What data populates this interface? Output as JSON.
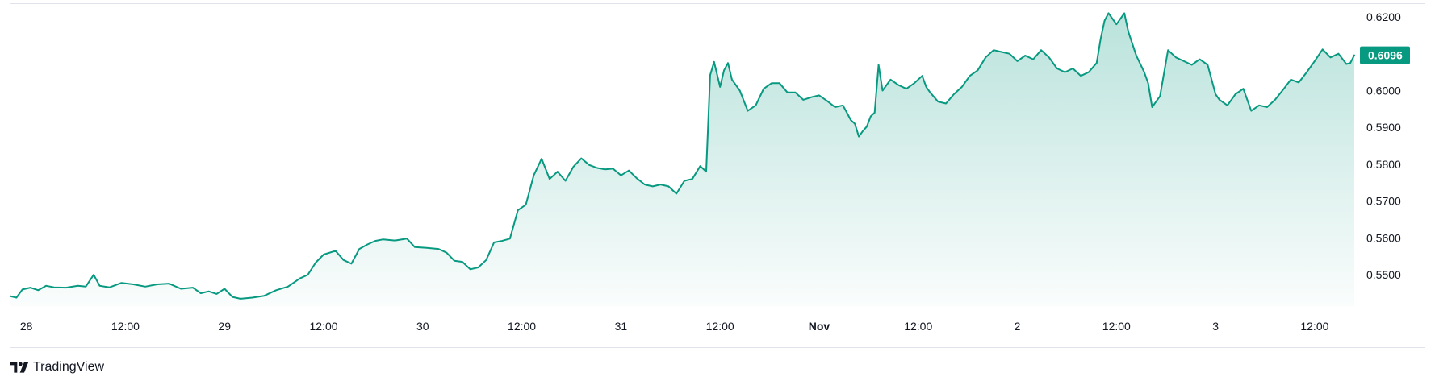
{
  "colors": {
    "line": "#089981",
    "fill_top": "#089981",
    "badge_bg": "#089981",
    "badge_text": "#ffffff"
  },
  "brand": {
    "name": "TradingView",
    "icon": "tradingview-logo-icon"
  },
  "chart_data": {
    "type": "area",
    "title": "",
    "xlabel": "",
    "ylabel": "",
    "grid": false,
    "ylim": [
      0.5415,
      0.6235
    ],
    "y_ticks": [
      "0.5500",
      "0.5600",
      "0.5700",
      "0.5800",
      "0.5900",
      "0.6000",
      "0.6200"
    ],
    "x_ticks": [
      {
        "label": "28",
        "t": 1.0,
        "bold": false
      },
      {
        "label": "12:00",
        "t": 1.5,
        "bold": false
      },
      {
        "label": "29",
        "t": 2.0,
        "bold": false
      },
      {
        "label": "12:00",
        "t": 2.5,
        "bold": false
      },
      {
        "label": "30",
        "t": 3.0,
        "bold": false
      },
      {
        "label": "12:00",
        "t": 3.5,
        "bold": false
      },
      {
        "label": "31",
        "t": 4.0,
        "bold": false
      },
      {
        "label": "12:00",
        "t": 4.5,
        "bold": false
      },
      {
        "label": "Nov",
        "t": 5.0,
        "bold": true
      },
      {
        "label": "12:00",
        "t": 5.5,
        "bold": false
      },
      {
        "label": "2",
        "t": 6.0,
        "bold": false
      },
      {
        "label": "12:00",
        "t": 6.5,
        "bold": false
      },
      {
        "label": "3",
        "t": 7.0,
        "bold": false
      },
      {
        "label": "12:00",
        "t": 7.5,
        "bold": false
      }
    ],
    "last_value": "0.6096",
    "series": [
      {
        "values": [
          [
            0.92,
            0.5442
          ],
          [
            0.95,
            0.5438
          ],
          [
            0.98,
            0.546
          ],
          [
            1.02,
            0.5465
          ],
          [
            1.06,
            0.5458
          ],
          [
            1.1,
            0.547
          ],
          [
            1.14,
            0.5466
          ],
          [
            1.2,
            0.5465
          ],
          [
            1.26,
            0.547
          ],
          [
            1.3,
            0.5468
          ],
          [
            1.34,
            0.55
          ],
          [
            1.37,
            0.547
          ],
          [
            1.42,
            0.5466
          ],
          [
            1.48,
            0.5478
          ],
          [
            1.54,
            0.5474
          ],
          [
            1.6,
            0.5468
          ],
          [
            1.66,
            0.5474
          ],
          [
            1.72,
            0.5476
          ],
          [
            1.78,
            0.5462
          ],
          [
            1.84,
            0.5465
          ],
          [
            1.88,
            0.545
          ],
          [
            1.92,
            0.5455
          ],
          [
            1.96,
            0.5448
          ],
          [
            2.0,
            0.5462
          ],
          [
            2.04,
            0.544
          ],
          [
            2.08,
            0.5435
          ],
          [
            2.14,
            0.5438
          ],
          [
            2.2,
            0.5443
          ],
          [
            2.26,
            0.5458
          ],
          [
            2.32,
            0.5468
          ],
          [
            2.38,
            0.549
          ],
          [
            2.42,
            0.55
          ],
          [
            2.46,
            0.5533
          ],
          [
            2.5,
            0.5555
          ],
          [
            2.56,
            0.5565
          ],
          [
            2.6,
            0.554
          ],
          [
            2.64,
            0.553
          ],
          [
            2.68,
            0.557
          ],
          [
            2.72,
            0.5582
          ],
          [
            2.76,
            0.5592
          ],
          [
            2.8,
            0.5596
          ],
          [
            2.86,
            0.5593
          ],
          [
            2.92,
            0.5598
          ],
          [
            2.96,
            0.5575
          ],
          [
            3.02,
            0.5573
          ],
          [
            3.08,
            0.557
          ],
          [
            3.12,
            0.556
          ],
          [
            3.16,
            0.5538
          ],
          [
            3.2,
            0.5535
          ],
          [
            3.24,
            0.5515
          ],
          [
            3.28,
            0.552
          ],
          [
            3.32,
            0.554
          ],
          [
            3.36,
            0.5588
          ],
          [
            3.4,
            0.5592
          ],
          [
            3.44,
            0.5598
          ],
          [
            3.48,
            0.5675
          ],
          [
            3.52,
            0.569
          ],
          [
            3.56,
            0.577
          ],
          [
            3.6,
            0.5815
          ],
          [
            3.64,
            0.576
          ],
          [
            3.68,
            0.578
          ],
          [
            3.72,
            0.5755
          ],
          [
            3.76,
            0.5793
          ],
          [
            3.8,
            0.5816
          ],
          [
            3.84,
            0.5798
          ],
          [
            3.88,
            0.579
          ],
          [
            3.92,
            0.5786
          ],
          [
            3.96,
            0.5788
          ],
          [
            4.0,
            0.577
          ],
          [
            4.04,
            0.5783
          ],
          [
            4.08,
            0.5762
          ],
          [
            4.12,
            0.5745
          ],
          [
            4.16,
            0.574
          ],
          [
            4.2,
            0.5745
          ],
          [
            4.24,
            0.574
          ],
          [
            4.28,
            0.572
          ],
          [
            4.32,
            0.5755
          ],
          [
            4.36,
            0.576
          ],
          [
            4.4,
            0.5795
          ],
          [
            4.43,
            0.578
          ],
          [
            4.45,
            0.6042
          ],
          [
            4.47,
            0.6078
          ],
          [
            4.5,
            0.601
          ],
          [
            4.52,
            0.6055
          ],
          [
            4.54,
            0.6075
          ],
          [
            4.56,
            0.603
          ],
          [
            4.6,
            0.6
          ],
          [
            4.64,
            0.5945
          ],
          [
            4.68,
            0.596
          ],
          [
            4.72,
            0.6005
          ],
          [
            4.76,
            0.602
          ],
          [
            4.8,
            0.602
          ],
          [
            4.84,
            0.5995
          ],
          [
            4.88,
            0.5995
          ],
          [
            4.92,
            0.5975
          ],
          [
            4.96,
            0.5982
          ],
          [
            5.0,
            0.5987
          ],
          [
            5.04,
            0.5972
          ],
          [
            5.08,
            0.5955
          ],
          [
            5.12,
            0.596
          ],
          [
            5.14,
            0.594
          ],
          [
            5.16,
            0.592
          ],
          [
            5.18,
            0.591
          ],
          [
            5.2,
            0.5875
          ],
          [
            5.22,
            0.589
          ],
          [
            5.24,
            0.5902
          ],
          [
            5.26,
            0.593
          ],
          [
            5.28,
            0.594
          ],
          [
            5.3,
            0.607
          ],
          [
            5.32,
            0.6
          ],
          [
            5.36,
            0.603
          ],
          [
            5.4,
            0.6015
          ],
          [
            5.44,
            0.6005
          ],
          [
            5.48,
            0.602
          ],
          [
            5.52,
            0.604
          ],
          [
            5.54,
            0.601
          ],
          [
            5.56,
            0.5995
          ],
          [
            5.6,
            0.597
          ],
          [
            5.64,
            0.5965
          ],
          [
            5.68,
            0.599
          ],
          [
            5.72,
            0.601
          ],
          [
            5.76,
            0.604
          ],
          [
            5.8,
            0.6055
          ],
          [
            5.84,
            0.609
          ],
          [
            5.88,
            0.611
          ],
          [
            5.92,
            0.6105
          ],
          [
            5.96,
            0.61
          ],
          [
            6.0,
            0.608
          ],
          [
            6.04,
            0.6095
          ],
          [
            6.08,
            0.6085
          ],
          [
            6.12,
            0.611
          ],
          [
            6.16,
            0.609
          ],
          [
            6.2,
            0.606
          ],
          [
            6.24,
            0.605
          ],
          [
            6.28,
            0.606
          ],
          [
            6.32,
            0.604
          ],
          [
            6.36,
            0.605
          ],
          [
            6.4,
            0.6075
          ],
          [
            6.42,
            0.614
          ],
          [
            6.44,
            0.619
          ],
          [
            6.46,
            0.621
          ],
          [
            6.5,
            0.618
          ],
          [
            6.54,
            0.621
          ],
          [
            6.56,
            0.616
          ],
          [
            6.6,
            0.6095
          ],
          [
            6.64,
            0.605
          ],
          [
            6.66,
            0.602
          ],
          [
            6.68,
            0.5955
          ],
          [
            6.72,
            0.5985
          ],
          [
            6.76,
            0.611
          ],
          [
            6.8,
            0.609
          ],
          [
            6.84,
            0.608
          ],
          [
            6.88,
            0.607
          ],
          [
            6.92,
            0.6085
          ],
          [
            6.96,
            0.607
          ],
          [
            7.0,
            0.599
          ],
          [
            7.02,
            0.5975
          ],
          [
            7.06,
            0.596
          ],
          [
            7.1,
            0.599
          ],
          [
            7.14,
            0.6005
          ],
          [
            7.18,
            0.5945
          ],
          [
            7.22,
            0.596
          ],
          [
            7.26,
            0.5955
          ],
          [
            7.3,
            0.5975
          ],
          [
            7.34,
            0.6002
          ],
          [
            7.38,
            0.603
          ],
          [
            7.42,
            0.6022
          ],
          [
            7.46,
            0.605
          ],
          [
            7.5,
            0.608
          ],
          [
            7.54,
            0.6112
          ],
          [
            7.58,
            0.609
          ],
          [
            7.62,
            0.61
          ],
          [
            7.66,
            0.6072
          ],
          [
            7.68,
            0.6075
          ],
          [
            7.7,
            0.6096
          ]
        ]
      }
    ]
  }
}
